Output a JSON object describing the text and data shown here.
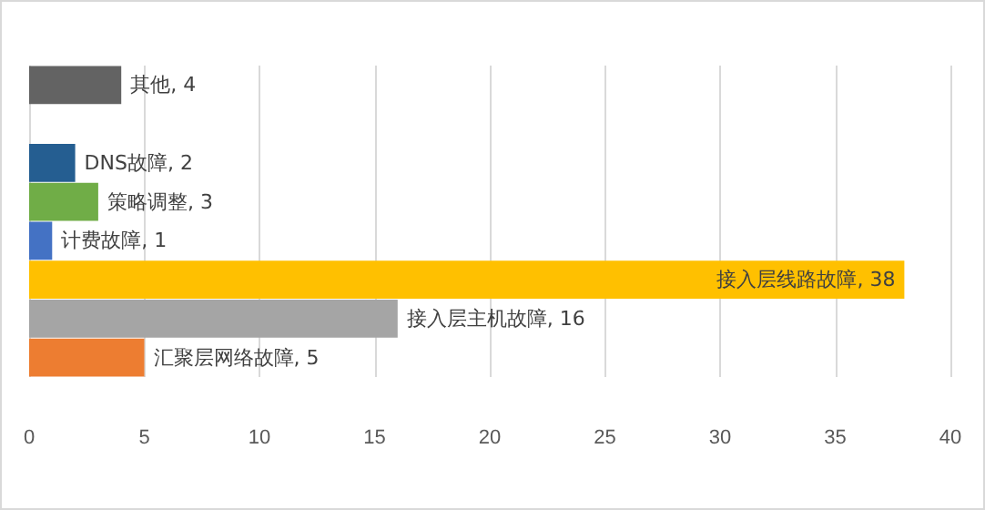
{
  "chart_data": {
    "type": "bar",
    "orientation": "horizontal",
    "categories": [
      null,
      null,
      null,
      null,
      null,
      null,
      null,
      null
    ],
    "values": [
      4,
      null,
      2,
      3,
      1,
      38,
      16,
      5
    ],
    "value_labels": [
      "其他, 4",
      null,
      "DNS故障, 2",
      "策略调整, 3",
      "计费故障, 1",
      "接入层线路故障, 38",
      "接入层主机故障, 16",
      "汇聚层网络故障, 5"
    ],
    "colors": [
      "#636363",
      null,
      "#255e91",
      "#70ad47",
      "#4472c4",
      "#ffc000",
      "#a5a5a5",
      "#ed7d31"
    ],
    "xlim": [
      0,
      40
    ],
    "xticks": [
      0,
      5,
      10,
      15,
      20,
      25,
      30,
      35,
      40
    ],
    "grid": "x",
    "tick_labels": "x"
  }
}
